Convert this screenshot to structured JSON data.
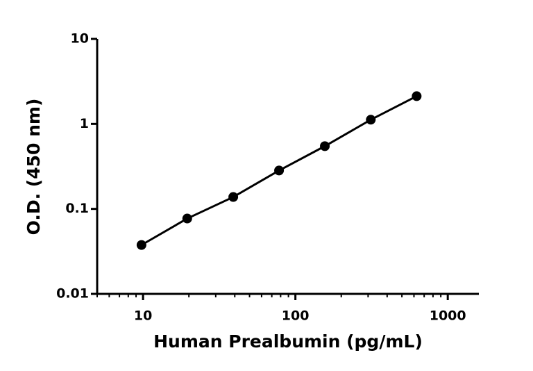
{
  "chart_data": {
    "type": "line",
    "x_label": "Human Prealbumin (pg/mL)",
    "y_label": "O.D. (450 nm)",
    "x": [
      9.77,
      19.5,
      39.1,
      78.1,
      156,
      312.5,
      625
    ],
    "series": [
      {
        "color": "#000000",
        "values": [
          0.0376,
          0.077,
          0.138,
          0.283,
          0.547,
          1.12,
          2.12
        ]
      }
    ],
    "xlim": [
      5,
      1600
    ],
    "xticks": [
      10,
      100,
      1000
    ],
    "ylim": [
      0.01,
      10
    ],
    "yticks": [
      0.01,
      0.1,
      1,
      10
    ],
    "x_scale": "log",
    "y_scale": "log",
    "markers": true
  }
}
